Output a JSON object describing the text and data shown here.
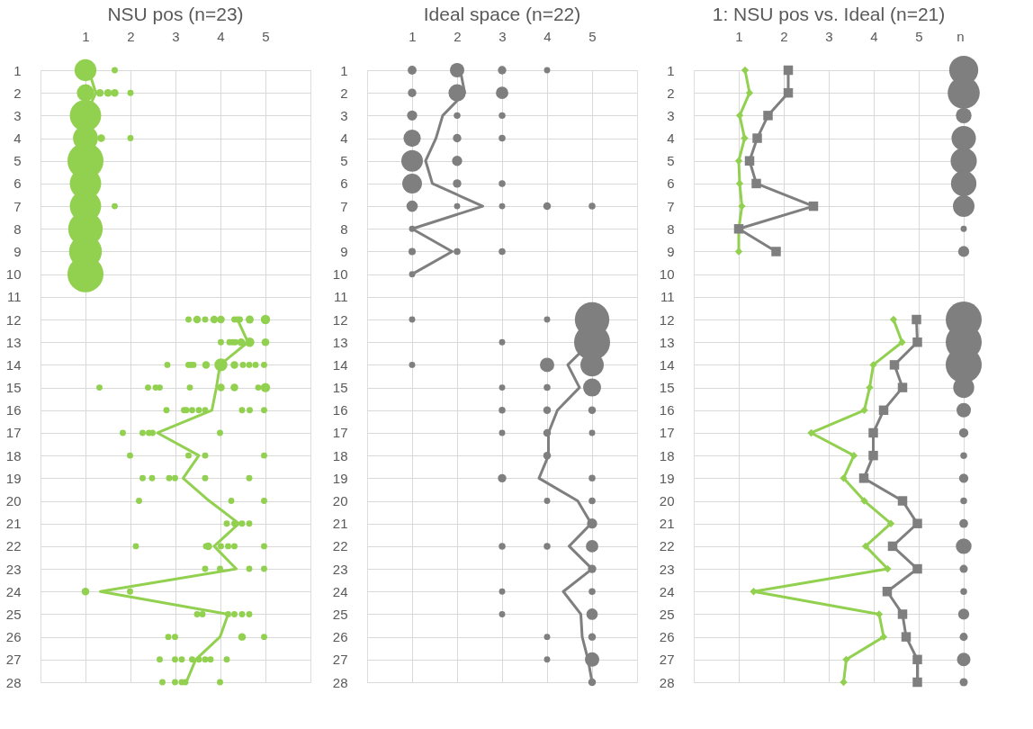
{
  "chart_data": [
    {
      "type": "bubble",
      "title": "NSU pos (n=23)",
      "xlim": [
        0,
        6
      ],
      "xticks": [
        1,
        2,
        3,
        4,
        5
      ],
      "ylim": [
        28,
        1
      ],
      "yticks": [
        1,
        2,
        3,
        4,
        5,
        6,
        7,
        8,
        9,
        10,
        11,
        12,
        13,
        14,
        15,
        16,
        17,
        18,
        19,
        20,
        21,
        22,
        23,
        24,
        25,
        26,
        27,
        28
      ],
      "grid": true,
      "series": [
        {
          "color": "#92d050",
          "x": [
            1,
            1.65,
            1,
            1.32,
            1.5,
            1.65,
            2,
            1,
            1,
            1.35,
            2,
            1,
            1,
            1,
            1.65,
            1,
            1,
            1,
            3.29,
            3.48,
            3.66,
            3.86,
            4.01,
            4.31,
            4.38,
            4.43,
            4.65,
            5,
            4.01,
            4.2,
            4.27,
            4.33,
            4.46,
            4.65,
            5,
            2.82,
            3.29,
            3.35,
            3.4,
            3.68,
            4.01,
            4.31,
            4.5,
            4.64,
            4.78,
            4.97,
            1.31,
            2.39,
            2.56,
            2.65,
            3.32,
            4.01,
            4.31,
            4.84,
            5,
            2.8,
            3.19,
            3.24,
            3.37,
            3.52,
            3.66,
            4.48,
            4.65,
            4.97,
            1.83,
            2.27,
            2.41,
            2.49,
            3.99,
            1.99,
            3.29,
            3.66,
            4.97,
            2.27,
            2.48,
            2.86,
            2.99,
            3.66,
            4.64,
            2.19,
            4.24,
            4.97,
            4.14,
            4.31,
            4.48,
            4.64,
            2.12,
            3.68,
            3.73,
            4.01,
            4.17,
            4.31,
            4.97,
            3.66,
            3.99,
            4.64,
            4.97,
            1,
            1.99,
            3.48,
            3.6,
            4.17,
            4.31,
            4.48,
            4.64,
            2.84,
            2.99,
            4.48,
            4.97,
            2.65,
            2.99,
            3.14,
            3.37,
            3.52,
            3.66,
            3.78,
            4.14,
            2.71,
            2.99,
            3.14,
            3.22,
            3.99
          ],
          "values": [
            1,
            1,
            2,
            2,
            2,
            2,
            2,
            3,
            4,
            4,
            4,
            5,
            6,
            7,
            7,
            8,
            9,
            10,
            12,
            12,
            12,
            12,
            12,
            12,
            12,
            12,
            12,
            12,
            13,
            13,
            13,
            13,
            13,
            13,
            13,
            14,
            14,
            14,
            14,
            14,
            14,
            14,
            14,
            14,
            14,
            14,
            15,
            15,
            15,
            15,
            15,
            15,
            15,
            15,
            15,
            16,
            16,
            16,
            16,
            16,
            16,
            16,
            16,
            16,
            17,
            17,
            17,
            17,
            17,
            18,
            18,
            18,
            18,
            19,
            19,
            19,
            19,
            19,
            19,
            20,
            20,
            20,
            21,
            21,
            21,
            21,
            22,
            22,
            22,
            22,
            22,
            22,
            22,
            23,
            23,
            23,
            23,
            24,
            24,
            25,
            25,
            25,
            25,
            25,
            25,
            26,
            26,
            26,
            26,
            27,
            27,
            27,
            27,
            27,
            27,
            27,
            27,
            28,
            28,
            28,
            28,
            28
          ],
          "sizes": [
            0.37,
            0.03,
            0.23,
            0.045,
            0.045,
            0.045,
            0.03,
            0.76,
            0.48,
            0.045,
            0.03,
            1,
            0.76,
            0.76,
            0.03,
            0.92,
            0.83,
            1,
            0.03,
            0.045,
            0.03,
            0.045,
            0.045,
            0.03,
            0.03,
            0.03,
            0.05,
            0.068,
            0.03,
            0.03,
            0.03,
            0.03,
            0.045,
            0.068,
            0.047,
            0.03,
            0.03,
            0.03,
            0.03,
            0.045,
            0.13,
            0.045,
            0.03,
            0.03,
            0.03,
            0.03,
            0.03,
            0.03,
            0.03,
            0.03,
            0.03,
            0.045,
            0.045,
            0.03,
            0.068,
            0.03,
            0.03,
            0.03,
            0.03,
            0.03,
            0.03,
            0.03,
            0.03,
            0.03,
            0.03,
            0.03,
            0.03,
            0.03,
            0.03,
            0.03,
            0.03,
            0.03,
            0.03,
            0.03,
            0.03,
            0.03,
            0.03,
            0.03,
            0.03,
            0.03,
            0.03,
            0.03,
            0.03,
            0.03,
            0.03,
            0.03,
            0.03,
            0.03,
            0.045,
            0.03,
            0.03,
            0.03,
            0.03,
            0.03,
            0.03,
            0.03,
            0.03,
            0.045,
            0.03,
            0.03,
            0.03,
            0.03,
            0.03,
            0.03,
            0.03,
            0.03,
            0.03,
            0.045,
            0.03,
            0.03,
            0.03,
            0.03,
            0.03,
            0.03,
            0.03,
            0.03,
            0.03,
            0.03,
            0.03,
            0.03,
            0.03,
            0.03
          ]
        },
        {
          "type": "line",
          "color": "#92d050",
          "x": [
            1.07,
            1.23,
            1.0,
            1.05,
            1.0,
            1.0,
            1.05,
            1.0,
            1.0,
            1.0,
            null,
            4.38,
            4.61,
            3.99,
            3.91,
            3.81,
            2.6,
            3.52,
            3.17,
            3.75,
            4.41,
            3.86,
            4.35,
            1.33,
            4.17,
            3.99,
            3.45,
            3.24
          ],
          "values": [
            1,
            2,
            3,
            4,
            5,
            6,
            7,
            8,
            9,
            10,
            null,
            12,
            13,
            14,
            15,
            16,
            17,
            18,
            19,
            20,
            21,
            22,
            23,
            24,
            25,
            26,
            27,
            28
          ]
        }
      ]
    },
    {
      "type": "bubble",
      "title": "Ideal space (n=22)",
      "xlim": [
        0,
        6
      ],
      "xticks": [
        1,
        2,
        3,
        4,
        5
      ],
      "ylim": [
        28,
        1
      ],
      "yticks": [
        1,
        2,
        3,
        4,
        5,
        6,
        7,
        8,
        9,
        10,
        11,
        12,
        13,
        14,
        15,
        16,
        17,
        18,
        19,
        20,
        21,
        22,
        23,
        24,
        25,
        26,
        27,
        28
      ],
      "grid": true,
      "series": [
        {
          "color": "#7f7f7f",
          "x": [
            1,
            2,
            3,
            4,
            1,
            2,
            3,
            1,
            2,
            3,
            1,
            2,
            3,
            1,
            2,
            1,
            2,
            3,
            1,
            2,
            3,
            4,
            5,
            1,
            1,
            2,
            3,
            1,
            1,
            4,
            5,
            3,
            5,
            1,
            4,
            5,
            3,
            4,
            5,
            3,
            4,
            5,
            3,
            4,
            5,
            4,
            3,
            5,
            4,
            5,
            5,
            3,
            4,
            5,
            5,
            3,
            5,
            3,
            5,
            4,
            5,
            4,
            5,
            5
          ],
          "values": [
            1,
            1,
            1,
            1,
            2,
            2,
            2,
            3,
            3,
            3,
            4,
            4,
            4,
            5,
            5,
            6,
            6,
            6,
            7,
            7,
            7,
            7,
            7,
            8,
            9,
            9,
            9,
            10,
            12,
            12,
            12,
            13,
            13,
            14,
            14,
            14,
            15,
            15,
            15,
            16,
            16,
            16,
            17,
            17,
            17,
            18,
            19,
            19,
            20,
            20,
            21,
            22,
            22,
            22,
            23,
            24,
            24,
            25,
            25,
            26,
            26,
            27,
            27,
            28
          ],
          "sizes": [
            0.06,
            0.16,
            0.055,
            0.03,
            0.055,
            0.23,
            0.12,
            0.08,
            0.035,
            0.035,
            0.23,
            0.055,
            0.035,
            0.36,
            0.08,
            0.3,
            0.055,
            0.035,
            0.1,
            0.03,
            0.03,
            0.045,
            0.035,
            0.03,
            0.04,
            0.035,
            0.035,
            0.03,
            0.03,
            0.03,
            0.92,
            0.03,
            1,
            0.03,
            0.16,
            0.42,
            0.03,
            0.035,
            0.25,
            0.035,
            0.045,
            0.045,
            0.03,
            0.045,
            0.03,
            0.045,
            0.055,
            0.035,
            0.03,
            0.035,
            0.08,
            0.035,
            0.035,
            0.12,
            0.055,
            0.03,
            0.035,
            0.03,
            0.1,
            0.03,
            0.045,
            0.03,
            0.16,
            0.045
          ]
        },
        {
          "type": "line",
          "color": "#7f7f7f",
          "x": [
            2.07,
            2.17,
            1.68,
            1.53,
            1.3,
            1.45,
            2.57,
            1.0,
            1.89,
            1.0,
            null,
            4.95,
            4.97,
            4.46,
            4.72,
            4.23,
            4.03,
            4.03,
            3.82,
            4.68,
            4.98,
            4.49,
            5.0,
            4.36,
            4.75,
            4.78,
            4.91,
            5.0
          ],
          "values": [
            1,
            2,
            3,
            4,
            5,
            6,
            7,
            8,
            9,
            10,
            null,
            12,
            13,
            14,
            15,
            16,
            17,
            18,
            19,
            20,
            21,
            22,
            23,
            24,
            25,
            26,
            27,
            28
          ]
        }
      ]
    },
    {
      "type": "line",
      "title": "1: NSU pos vs. Ideal (n=21)",
      "xlim": [
        0,
        6
      ],
      "xticks": [
        1,
        2,
        3,
        4,
        5,
        {
          "value": 6,
          "label": "n"
        }
      ],
      "ylim": [
        28,
        1
      ],
      "yticks": [
        1,
        2,
        3,
        4,
        5,
        6,
        7,
        8,
        9,
        10,
        11,
        12,
        13,
        14,
        15,
        16,
        17,
        18,
        19,
        20,
        21,
        22,
        23,
        24,
        25,
        26,
        27,
        28
      ],
      "grid": true,
      "series": [
        {
          "type": "bubble",
          "color": "#7f7f7f",
          "x": [
            6,
            6,
            6,
            6,
            6,
            6,
            6,
            6,
            6,
            6,
            6,
            6,
            6,
            6,
            6,
            6,
            6,
            6,
            6,
            6,
            6,
            6,
            6,
            6,
            6,
            6
          ],
          "values": [
            1,
            2,
            3,
            4,
            5,
            6,
            7,
            8,
            9,
            12,
            13,
            14,
            15,
            16,
            17,
            18,
            19,
            20,
            21,
            22,
            23,
            24,
            25,
            26,
            27,
            28
          ],
          "sizes": [
            0.65,
            0.79,
            0.19,
            0.46,
            0.53,
            0.5,
            0.36,
            0.03,
            0.094,
            1,
            1,
            1,
            0.34,
            0.16,
            0.067,
            0.035,
            0.067,
            0.035,
            0.059,
            0.19,
            0.051,
            0.035,
            0.094,
            0.051,
            0.14,
            0.051
          ]
        },
        {
          "color": "#92d050",
          "marker": "diamond",
          "x": [
            1.14,
            1.24,
            1.02,
            1.13,
            1.0,
            1.02,
            1.07,
            1.0,
            1.0,
            null,
            4.44,
            4.63,
            3.99,
            3.91,
            3.79,
            2.61,
            3.56,
            3.33,
            3.79,
            4.38,
            3.82,
            4.31,
            1.33,
            4.12,
            4.22,
            3.39,
            3.33
          ],
          "values": [
            1,
            2,
            3,
            4,
            5,
            6,
            7,
            8,
            9,
            null,
            12,
            13,
            14,
            15,
            16,
            17,
            18,
            19,
            20,
            21,
            22,
            23,
            24,
            25,
            26,
            27,
            28
          ]
        },
        {
          "color": "#7f7f7f",
          "marker": "square",
          "x": [
            2.1,
            2.1,
            1.65,
            1.41,
            1.24,
            1.39,
            2.66,
            1.0,
            1.83,
            null,
            4.95,
            4.97,
            4.46,
            4.64,
            4.22,
            3.99,
            3.99,
            3.78,
            4.64,
            4.97,
            4.42,
            4.97,
            4.3,
            4.64,
            4.72,
            4.97,
            4.97
          ],
          "values": [
            1,
            2,
            3,
            4,
            5,
            6,
            7,
            8,
            9,
            null,
            12,
            13,
            14,
            15,
            16,
            17,
            18,
            19,
            20,
            21,
            22,
            23,
            24,
            25,
            26,
            27,
            28
          ]
        }
      ]
    }
  ]
}
